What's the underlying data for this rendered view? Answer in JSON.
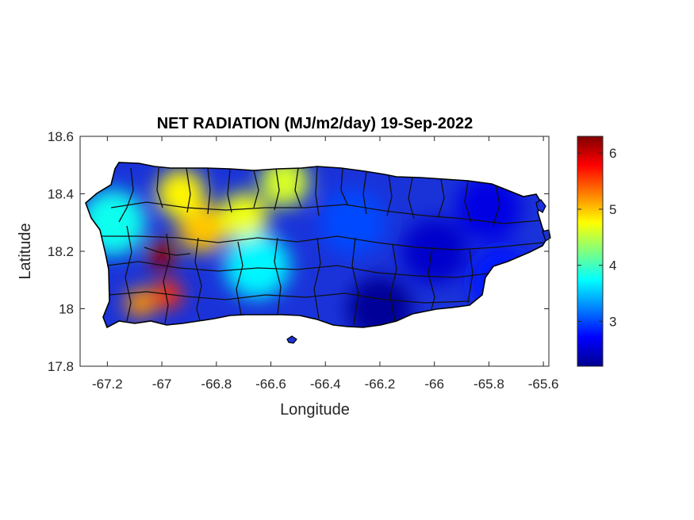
{
  "chart_data": {
    "type": "heatmap",
    "title": "NET RADIATION (MJ/m2/day) 19-Sep-2022",
    "xlabel": "Longitude",
    "ylabel": "Latitude",
    "xlim": [
      -67.3,
      -65.58
    ],
    "ylim": [
      17.8,
      18.6
    ],
    "x_ticks": [
      -67.2,
      -67,
      -66.8,
      -66.6,
      -66.4,
      -66.2,
      -66,
      -65.8,
      -65.6
    ],
    "x_tick_labels": [
      "-67.2",
      "-67",
      "-66.8",
      "-66.6",
      "-66.4",
      "-66.2",
      "-66",
      "-65.8",
      "-65.6"
    ],
    "y_ticks": [
      17.8,
      18,
      18.2,
      18.4,
      18.6
    ],
    "y_tick_labels": [
      "17.8",
      "18",
      "18.2",
      "18.4",
      "18.6"
    ],
    "colorbar": {
      "colormap": "jet",
      "range": [
        2.2,
        6.3
      ],
      "ticks": [
        3,
        4,
        5,
        6
      ],
      "tick_labels": [
        "3",
        "4",
        "5",
        "6"
      ]
    },
    "regions": [
      {
        "lon": -67.0,
        "lat": 18.19,
        "value": 6.2
      },
      {
        "lon": -66.98,
        "lat": 18.05,
        "value": 5.6
      },
      {
        "lon": -67.08,
        "lat": 18.02,
        "value": 5.2
      },
      {
        "lon": -66.85,
        "lat": 18.28,
        "value": 5.0
      },
      {
        "lon": -66.93,
        "lat": 18.4,
        "value": 4.8
      },
      {
        "lon": -66.7,
        "lat": 18.32,
        "value": 4.7
      },
      {
        "lon": -66.55,
        "lat": 18.44,
        "value": 4.6
      },
      {
        "lon": -67.18,
        "lat": 18.3,
        "value": 3.8
      },
      {
        "lon": -66.65,
        "lat": 18.15,
        "value": 3.7
      },
      {
        "lon": -66.3,
        "lat": 18.3,
        "value": 3.0
      },
      {
        "lon": -66.2,
        "lat": 18.0,
        "value": 2.3
      },
      {
        "lon": -66.0,
        "lat": 18.2,
        "value": 2.5
      },
      {
        "lon": -65.8,
        "lat": 18.35,
        "value": 2.6
      },
      {
        "lon": -65.75,
        "lat": 18.1,
        "value": 2.8
      }
    ]
  }
}
